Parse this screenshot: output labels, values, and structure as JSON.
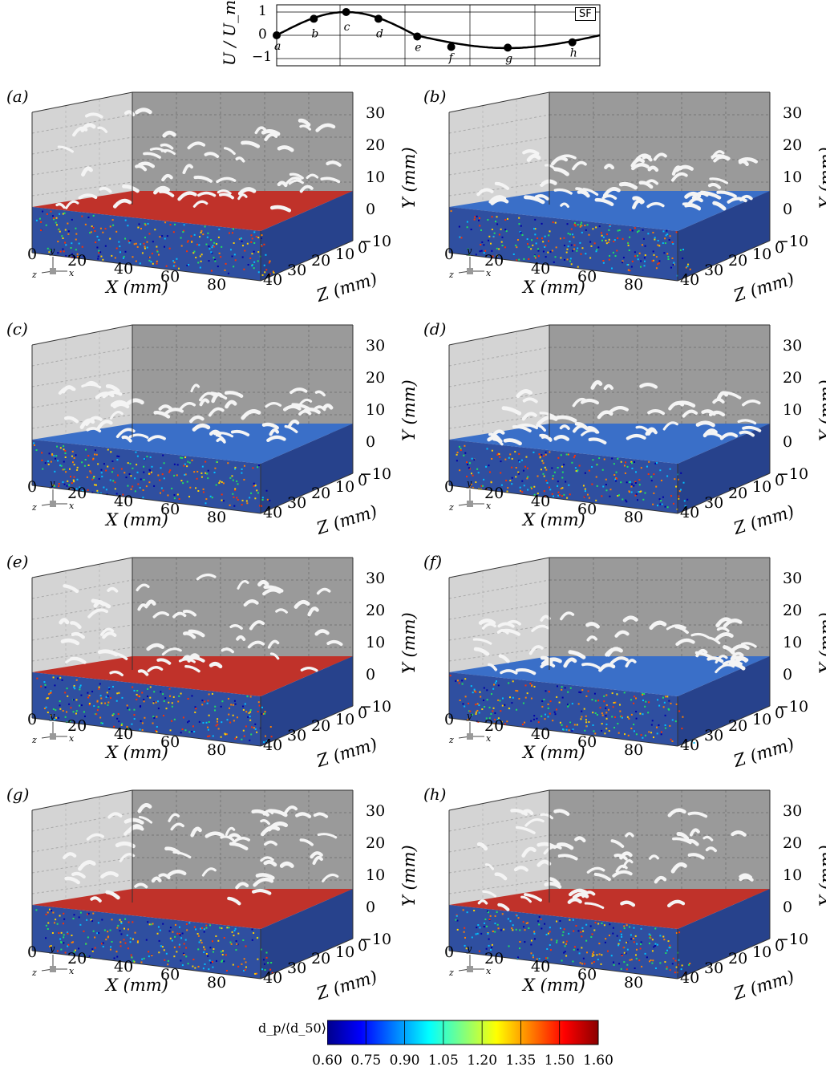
{
  "inset": {
    "ylabel": "U / U_max",
    "ticks": [
      "1",
      "0",
      "−1"
    ],
    "tag": "SF",
    "phase_points": [
      {
        "label": "a",
        "value": 0.0
      },
      {
        "label": "b",
        "value": 0.71
      },
      {
        "label": "c",
        "value": 1.0
      },
      {
        "label": "d",
        "value": 0.71
      },
      {
        "label": "e",
        "value": -0.05
      },
      {
        "label": "f",
        "value": -0.5
      },
      {
        "label": "g",
        "value": -0.53
      },
      {
        "label": "h",
        "value": -0.3
      }
    ]
  },
  "panels": [
    {
      "id": "a",
      "label": "(a)",
      "bed": "red"
    },
    {
      "id": "b",
      "label": "(b)",
      "bed": "blue"
    },
    {
      "id": "c",
      "label": "(c)",
      "bed": "blue"
    },
    {
      "id": "d",
      "label": "(d)",
      "bed": "blue"
    },
    {
      "id": "e",
      "label": "(e)",
      "bed": "red"
    },
    {
      "id": "f",
      "label": "(f)",
      "bed": "blue"
    },
    {
      "id": "g",
      "label": "(g)",
      "bed": "red"
    },
    {
      "id": "h",
      "label": "(h)",
      "bed": "red"
    }
  ],
  "axes": {
    "y_ticks": [
      "30",
      "20",
      "10",
      "0",
      "−10"
    ],
    "y_title": "Y (mm)",
    "x_ticks": [
      "0",
      "20",
      "40",
      "60",
      "80"
    ],
    "x_title": "X (mm)",
    "z_ticks": [
      "40",
      "30",
      "20",
      "10",
      "0"
    ],
    "z_title": "Z (mm)",
    "triad": {
      "y": "y",
      "z": "z",
      "x": "x"
    }
  },
  "colorbar": {
    "label": "d_p/⟨d_50⟩",
    "ticks": [
      "0.60",
      "0.75",
      "0.90",
      "1.05",
      "1.20",
      "1.35",
      "1.50",
      "1.60"
    ],
    "colors": [
      "#00008b",
      "#0000ff",
      "#0080ff",
      "#00ffff",
      "#80ff80",
      "#ffff00",
      "#ff8000",
      "#ff0000",
      "#8b0000"
    ]
  }
}
